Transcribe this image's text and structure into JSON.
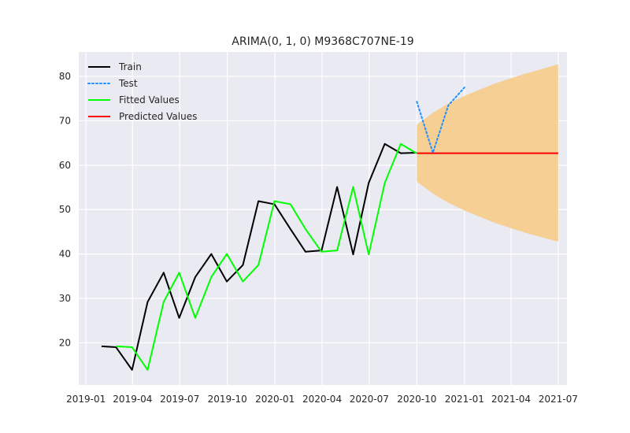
{
  "chart_data": {
    "type": "line",
    "title": "ARIMA(0, 1, 0) M9368C707NE-19",
    "xlabel": "",
    "ylabel": "",
    "x_axis_type": "date",
    "xlim": [
      "2018-12-18",
      "2021-07-18"
    ],
    "ylim": [
      10.5,
      85.5
    ],
    "x_ticks": [
      "2019-01",
      "2019-04",
      "2019-07",
      "2019-10",
      "2020-01",
      "2020-04",
      "2020-07",
      "2020-10",
      "2021-01",
      "2021-04",
      "2021-07"
    ],
    "y_ticks": [
      20,
      30,
      40,
      50,
      60,
      70,
      80
    ],
    "grid": true,
    "legend_position": "top-left",
    "series": [
      {
        "name": "Train",
        "style": "solid",
        "color": "#000000",
        "x": [
          "2019-01-31",
          "2019-02-28",
          "2019-03-31",
          "2019-04-30",
          "2019-05-31",
          "2019-06-30",
          "2019-07-31",
          "2019-08-31",
          "2019-09-30",
          "2019-10-31",
          "2019-11-30",
          "2019-12-31",
          "2020-01-31",
          "2020-02-29",
          "2020-03-31",
          "2020-04-30",
          "2020-05-31",
          "2020-06-30",
          "2020-07-31",
          "2020-08-31",
          "2020-09-30"
        ],
        "y": [
          19.2,
          19.0,
          13.9,
          29.2,
          35.8,
          25.6,
          34.8,
          40.0,
          33.8,
          37.5,
          51.9,
          51.2,
          45.6,
          40.5,
          40.8,
          55.1,
          39.9,
          56.0,
          64.8,
          62.7,
          62.8
        ]
      },
      {
        "name": "Test",
        "style": "dotted",
        "color": "#1e90ff",
        "x": [
          "2020-10-01",
          "2020-11-01",
          "2020-12-01",
          "2021-01-01"
        ],
        "y": [
          74.3,
          62.8,
          73.5,
          77.5
        ]
      },
      {
        "name": "Fitted Values",
        "style": "solid",
        "color": "#00ff00",
        "x": [
          "2019-02-28",
          "2019-03-31",
          "2019-04-30",
          "2019-05-31",
          "2019-06-30",
          "2019-07-31",
          "2019-08-31",
          "2019-09-30",
          "2019-10-31",
          "2019-11-30",
          "2019-12-31",
          "2020-01-31",
          "2020-02-29",
          "2020-03-31",
          "2020-04-30",
          "2020-05-31",
          "2020-06-30",
          "2020-07-31",
          "2020-08-31",
          "2020-09-30"
        ],
        "y": [
          19.2,
          19.0,
          13.9,
          29.2,
          35.8,
          25.6,
          34.8,
          40.0,
          33.8,
          37.5,
          51.9,
          51.2,
          45.6,
          40.5,
          40.8,
          55.1,
          39.9,
          56.0,
          64.8,
          62.7
        ]
      },
      {
        "name": "Predicted Values",
        "style": "solid",
        "color": "#ff0000",
        "x": [
          "2020-10-01",
          "2021-07-01"
        ],
        "y": [
          62.7,
          62.7
        ]
      }
    ],
    "confidence_band": {
      "color": "#f5cf94",
      "x": [
        "2020-10-01",
        "2020-11-01",
        "2020-12-01",
        "2021-01-01",
        "2021-02-01",
        "2021-03-01",
        "2021-04-01",
        "2021-05-01",
        "2021-06-01",
        "2021-07-01"
      ],
      "upper": [
        69.1,
        71.8,
        73.9,
        75.6,
        77.1,
        78.4,
        79.6,
        80.7,
        81.7,
        82.7
      ],
      "lower": [
        56.3,
        53.6,
        51.5,
        49.8,
        48.3,
        47.0,
        45.8,
        44.7,
        43.7,
        42.8
      ]
    }
  }
}
